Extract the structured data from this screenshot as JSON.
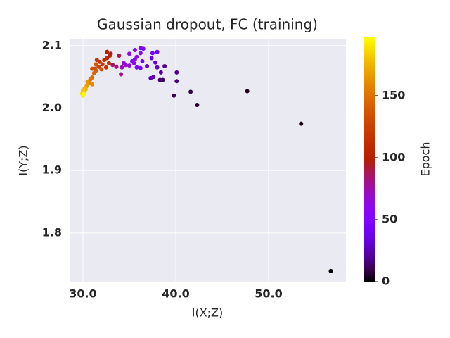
{
  "chart_data": {
    "type": "scatter",
    "title": "Gaussian dropout, FC (training)",
    "x_label": "I(X;Z)",
    "y_label": "I(Y;Z)",
    "colorbar_label": "Epoch",
    "colormap": "gnuplot",
    "grid": true,
    "xlim": [
      28.64,
      58.33
    ],
    "ylim": [
      1.722,
      2.111
    ],
    "clim": [
      0,
      197
    ],
    "xticks": [
      {
        "value": 30,
        "label": "30.0"
      },
      {
        "value": 40,
        "label": "40.0"
      },
      {
        "value": 50,
        "label": "50.0"
      }
    ],
    "yticks": [
      1.8,
      1.9,
      {
        "value": 2.0,
        "label": "2.0"
      },
      2.1
    ],
    "cticks": [
      0,
      50,
      100,
      150
    ],
    "series": [
      {
        "x": [
          56.7,
          53.5,
          47.7,
          42.3,
          41.6,
          39.8,
          38.6,
          38.3,
          40.1,
          40.1,
          38.8,
          38.4,
          37.6,
          37.3,
          38.0,
          36.9,
          37.8,
          37.4,
          38.0,
          37.5,
          36.4,
          35.8,
          36.2,
          36.5,
          36.2,
          35.6,
          36.2,
          35.6,
          35.3,
          35.0,
          35.8,
          35.5,
          34.6,
          34.4,
          35.0,
          34.2,
          34.1,
          33.6,
          33.2,
          33.9,
          33.0,
          32.6,
          32.9,
          32.6,
          32.3,
          32.8,
          32.5,
          31.8,
          31.5,
          32.1,
          31.7,
          31.3,
          31.0,
          32.0,
          31.4,
          31.4,
          31.2,
          31.0,
          30.8,
          30.7,
          31.0,
          30.5,
          30.4,
          30.2,
          30.3,
          30.0,
          30.1,
          29.9,
          30.0,
          30.1
        ],
        "values": [
          1.739,
          1.975,
          2.027,
          2.005,
          2.026,
          2.02,
          2.045,
          2.045,
          2.043,
          2.057,
          2.067,
          2.057,
          2.05,
          2.048,
          2.065,
          2.067,
          2.073,
          2.08,
          2.09,
          2.088,
          2.075,
          2.065,
          2.064,
          2.095,
          2.096,
          2.093,
          2.088,
          2.078,
          2.075,
          2.087,
          2.082,
          2.072,
          2.069,
          2.072,
          2.068,
          2.065,
          2.054,
          2.066,
          2.069,
          2.084,
          2.087,
          2.09,
          2.084,
          2.08,
          2.077,
          2.072,
          2.065,
          2.074,
          2.077,
          2.07,
          2.066,
          2.063,
          2.063,
          2.062,
          2.07,
          2.06,
          2.056,
          2.049,
          2.046,
          2.04,
          2.038,
          2.042,
          2.035,
          2.032,
          2.03,
          2.028,
          2.025,
          2.023,
          2.02,
          2.022
        ],
        "c": [
          0,
          2,
          4,
          6,
          8,
          10,
          12,
          14,
          16,
          18,
          20,
          22,
          24,
          26,
          28,
          30,
          33,
          36,
          38,
          40,
          42,
          44,
          46,
          48,
          50,
          52,
          54,
          56,
          58,
          60,
          62,
          64,
          66,
          68,
          70,
          74,
          78,
          82,
          86,
          90,
          94,
          98,
          102,
          106,
          110,
          112,
          114,
          116,
          118,
          120,
          124,
          128,
          132,
          134,
          136,
          140,
          144,
          148,
          152,
          156,
          160,
          164,
          168,
          172,
          176,
          180,
          184,
          188,
          192,
          196
        ]
      }
    ]
  }
}
